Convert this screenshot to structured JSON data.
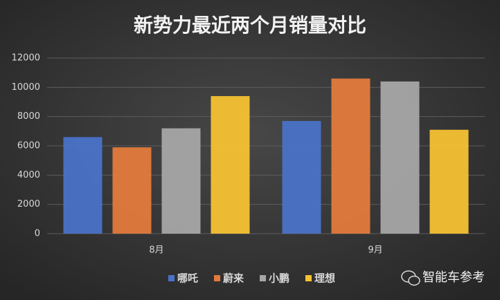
{
  "chart_data": {
    "type": "bar",
    "title": "新势力最近两个月销量对比",
    "categories": [
      "8月",
      "9月"
    ],
    "series": [
      {
        "name": "哪吒",
        "color": "#4a72c8",
        "values": [
          6600,
          7700
        ]
      },
      {
        "name": "蔚来",
        "color": "#e27a3c",
        "values": [
          5900,
          10600
        ]
      },
      {
        "name": "小鹏",
        "color": "#a6a6a6",
        "values": [
          7200,
          10400
        ]
      },
      {
        "name": "理想",
        "color": "#f5c233",
        "values": [
          9400,
          7100
        ]
      }
    ],
    "ylim": [
      0,
      12000
    ],
    "yticks": [
      0,
      2000,
      4000,
      6000,
      8000,
      10000,
      12000
    ],
    "grid": true,
    "legend": "bottom",
    "watermark": "智能车参考"
  }
}
